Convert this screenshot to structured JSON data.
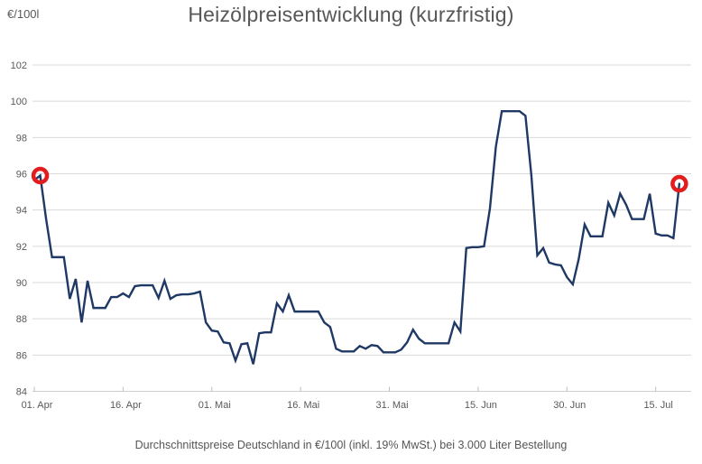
{
  "chart_data": {
    "type": "line",
    "title": "Heizölpreisentwicklung (kurzfristig)",
    "unit_label": "€/100l",
    "caption": "Durchschnittspreise Deutschland in €/100l (inkl. 19% MwSt.) bei 3.000 Liter Bestellung",
    "ylim": [
      84,
      102
    ],
    "y_tick_step": 2,
    "y_tick_labels": [
      "84",
      "86",
      "88",
      "90",
      "92",
      "94",
      "96",
      "98",
      "100",
      "102"
    ],
    "x_tick_labels": [
      "01. Apr",
      "16. Apr",
      "01. Mai",
      "16. Mai",
      "31. Mai",
      "15. Jun",
      "30. Jun",
      "15. Jul"
    ],
    "x_tick_days": [
      0,
      15,
      30,
      45,
      60,
      75,
      90,
      105
    ],
    "x_total_days": 111,
    "grid": true,
    "legend": "none",
    "line_color": "#1f3864",
    "grid_color": "#d9d9d9",
    "axis_line_color": "#cfcfcf",
    "tick_color": "#bfbfbf",
    "label_color": "#595959",
    "marker_color": "#e11d1d",
    "marker_point_indices": [
      1,
      109
    ],
    "series": [
      {
        "start_label": "01. Apr",
        "values": [
          95.65,
          95.9,
          93.5,
          91.4,
          91.4,
          91.4,
          89.1,
          90.2,
          87.8,
          90.1,
          88.6,
          88.6,
          88.6,
          89.2,
          89.2,
          89.4,
          89.2,
          89.8,
          89.85,
          89.85,
          89.85,
          89.15,
          90.1,
          89.1,
          89.3,
          89.35,
          89.35,
          89.4,
          89.5,
          87.8,
          87.35,
          87.3,
          86.7,
          86.65,
          85.7,
          86.6,
          86.65,
          85.5,
          87.2,
          87.25,
          87.25,
          88.85,
          88.4,
          89.3,
          88.4,
          88.4,
          88.4,
          88.4,
          88.4,
          87.8,
          87.55,
          86.35,
          86.2,
          86.2,
          86.2,
          86.5,
          86.35,
          86.55,
          86.5,
          86.15,
          86.15,
          86.15,
          86.3,
          86.7,
          87.4,
          86.9,
          86.65,
          86.65,
          86.65,
          86.65,
          86.65,
          87.8,
          87.3,
          91.9,
          91.95,
          91.95,
          92.0,
          94.1,
          97.5,
          99.45,
          99.45,
          99.45,
          99.45,
          99.2,
          95.9,
          91.5,
          91.9,
          91.1,
          91.0,
          90.95,
          90.3,
          89.9,
          91.3,
          93.2,
          92.55,
          92.55,
          92.55,
          94.4,
          93.7,
          94.9,
          94.3,
          93.5,
          93.5,
          93.5,
          94.9,
          92.7,
          92.6,
          92.6,
          92.45,
          95.45
        ]
      }
    ]
  }
}
